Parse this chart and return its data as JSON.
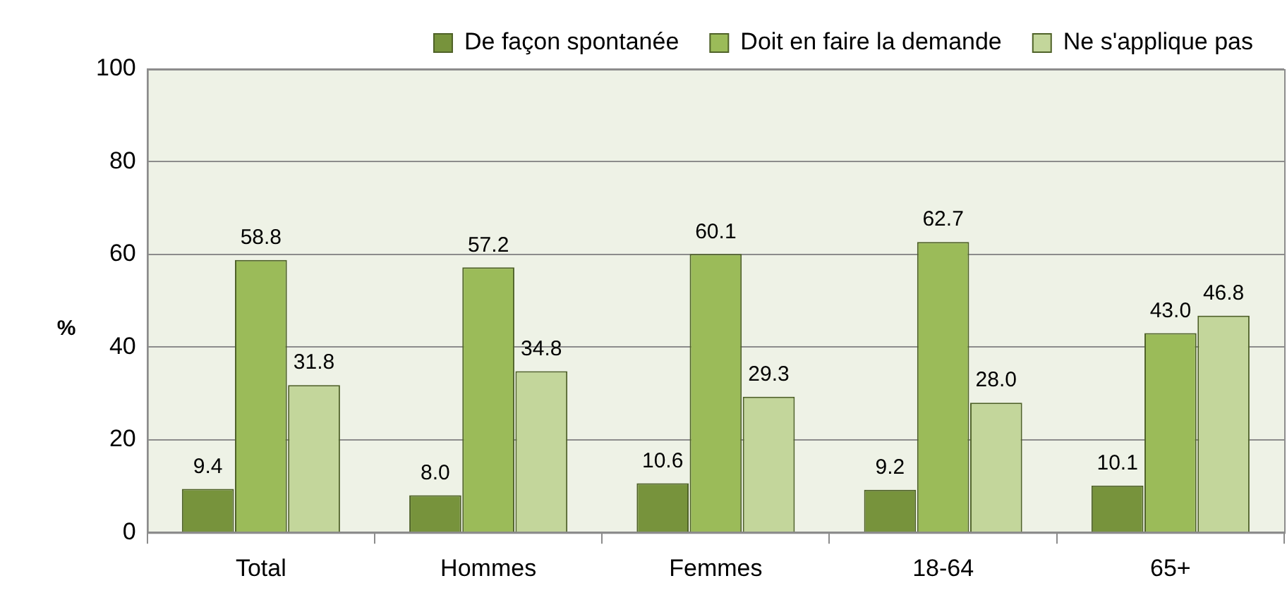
{
  "chart_data": {
    "type": "bar",
    "ylabel": "%",
    "categories": [
      "Total",
      "Hommes",
      "Femmes",
      "18-64",
      "65+"
    ],
    "series": [
      {
        "name": "De façon spontanée",
        "color": "#77933c",
        "values": [
          9.4,
          8.0,
          10.6,
          9.2,
          10.1
        ],
        "value_labels": [
          "9.4",
          "8.0",
          "10.6",
          "9.2",
          "10.1"
        ]
      },
      {
        "name": "Doit en faire la demande",
        "color": "#9bbb59",
        "values": [
          58.8,
          57.2,
          60.1,
          62.7,
          43.0
        ],
        "value_labels": [
          "58.8",
          "57.2",
          "60.1",
          "62.7",
          "43.0"
        ]
      },
      {
        "name": "Ne s'applique pas",
        "color": "#c3d69b",
        "values": [
          31.8,
          34.8,
          29.3,
          28.0,
          46.8
        ],
        "value_labels": [
          "31.8",
          "34.8",
          "29.3",
          "28.0",
          "46.8"
        ]
      }
    ],
    "ylim": [
      0,
      100
    ],
    "yticks": [
      0,
      20,
      40,
      60,
      80,
      100
    ],
    "grid": "y",
    "legend": "top"
  }
}
